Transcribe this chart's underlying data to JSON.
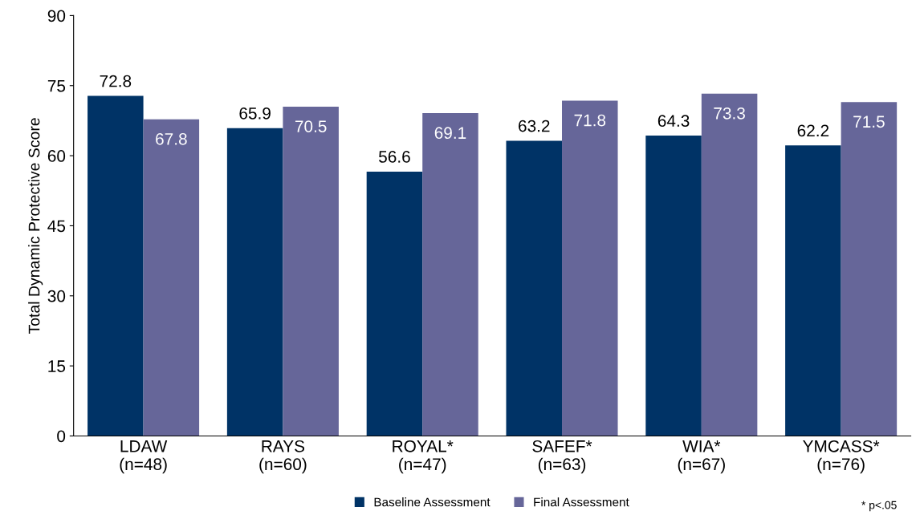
{
  "chart_data": {
    "type": "bar",
    "ylabel": "Total Dynamic Protective Score",
    "categories": [
      "LDAW\n(n=48)",
      "RAYS\n(n=60)",
      "ROYAL*\n(n=47)",
      "SAFEF*\n(n=63)",
      "WIA*\n(n=67)",
      "YMCASS*\n(n=76)"
    ],
    "series": [
      {
        "name": "Baseline Assessment",
        "color": "#003366",
        "values": [
          72.8,
          65.9,
          56.6,
          63.2,
          64.3,
          62.2
        ]
      },
      {
        "name": "Final Assessment",
        "color": "#666699",
        "values": [
          67.8,
          70.5,
          69.1,
          71.8,
          73.3,
          71.5
        ]
      }
    ],
    "ylim": [
      0,
      90
    ],
    "yticks": [
      0,
      15,
      30,
      45,
      60,
      75,
      90
    ],
    "grid": false,
    "legend": "bottom",
    "data_labels": true,
    "annotations": [
      "* p<.05"
    ]
  }
}
